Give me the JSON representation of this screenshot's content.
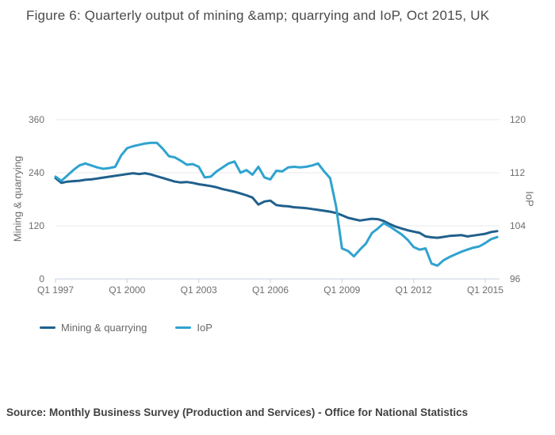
{
  "title": "Figure 6: Quarterly output of mining &amp; quarrying and IoP, Oct 2015, UK",
  "source_note": "Source: Monthly Business Survey (Production and Services) - Office for National Statistics",
  "colors": {
    "mining_line": "#20608C",
    "iop_line": "#2FA3CF",
    "gridline": "#E8E8E8",
    "axis_line": "#C6D0E2",
    "tick_text": "#6E6E6E",
    "title_text": "#4A4A4A",
    "source_text": "#414141",
    "legend_text": "#68686B",
    "background": "#FFFFFF"
  },
  "chart_data": {
    "type": "line",
    "title": "Figure 6: Quarterly output of mining &amp; quarrying and IoP, Oct 2015, UK",
    "x_frequency": "quarterly",
    "x_start": "Q1 1997",
    "x_end": "Q3 2015",
    "x_tick_labels": [
      "Q1 1997",
      "Q1 2000",
      "Q1 2003",
      "Q1 2006",
      "Q1 2009",
      "Q1 2012",
      "Q1 2015"
    ],
    "x_tick_quarter_indices": [
      0,
      12,
      24,
      36,
      48,
      60,
      72
    ],
    "y_left": {
      "label": "Mining & quarrying",
      "ticks": [
        0,
        120,
        240,
        360
      ],
      "range": [
        0,
        360
      ]
    },
    "y_right": {
      "label": "IoP",
      "ticks": [
        96,
        104,
        112,
        120
      ],
      "range": [
        96,
        120
      ]
    },
    "grid": "horizontal-only",
    "legend_position": "bottom-left",
    "series": [
      {
        "name": "Mining & quarrying",
        "axis": "left",
        "color": "#20608C",
        "values": [
          228,
          217,
          220,
          221,
          222,
          224,
          225,
          227,
          229,
          231,
          233,
          235,
          237,
          239,
          237,
          239,
          236,
          232,
          228,
          224,
          220,
          218,
          219,
          217,
          214,
          212,
          210,
          207,
          203,
          200,
          197,
          193,
          189,
          184,
          168,
          175,
          177,
          167,
          165,
          164,
          162,
          161,
          160,
          158,
          156,
          154,
          152,
          149,
          144,
          138,
          135,
          132,
          134,
          136,
          135,
          131,
          124,
          118,
          114,
          110,
          107,
          104,
          96,
          94,
          93,
          95,
          97,
          98,
          99,
          96,
          98,
          100,
          102,
          106,
          108
        ]
      },
      {
        "name": "IoP",
        "axis": "right",
        "color": "#2FA3CF",
        "values": [
          111.4,
          110.8,
          111.6,
          112.4,
          113.1,
          113.4,
          113.1,
          112.8,
          112.6,
          112.7,
          112.9,
          114.6,
          115.7,
          116.0,
          116.2,
          116.4,
          116.5,
          116.5,
          115.6,
          114.5,
          114.3,
          113.8,
          113.2,
          113.3,
          112.9,
          111.3,
          111.4,
          112.2,
          112.8,
          113.4,
          113.7,
          112.0,
          112.4,
          111.7,
          112.9,
          111.3,
          111.0,
          112.3,
          112.2,
          112.8,
          112.9,
          112.8,
          112.9,
          113.1,
          113.4,
          112.2,
          111.2,
          107.0,
          100.6,
          100.2,
          99.4,
          100.4,
          101.3,
          102.9,
          103.6,
          104.4,
          103.9,
          103.3,
          102.7,
          101.9,
          100.8,
          100.4,
          100.6,
          98.3,
          98.0,
          98.8,
          99.3,
          99.7,
          100.1,
          100.4,
          100.7,
          100.9,
          101.4,
          102.0,
          102.3
        ]
      }
    ]
  }
}
